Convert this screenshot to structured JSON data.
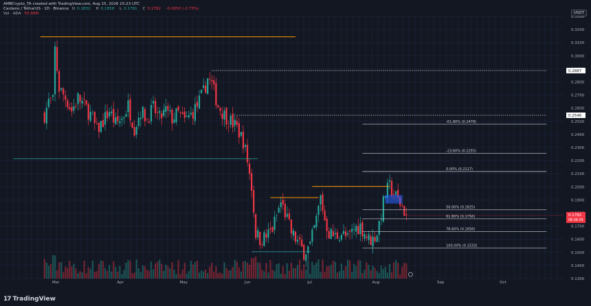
{
  "header": {
    "created": "AMBCrypto_TA created with TradingView.com, Aug 15, 2026 15:23 UTC",
    "symbol": "Cardano / TetherUS · 1D · Binance",
    "ohlc": [
      {
        "label": "O",
        "value": "0.1832"
      },
      {
        "label": "H",
        "value": "0.1858"
      },
      {
        "label": "L",
        "value": "0.1781"
      },
      {
        "label": "C",
        "value": "0.1782"
      },
      {
        "label": "",
        "value": "-0.0050 (-2.73%)"
      }
    ],
    "vol_line": "Vol · ADA",
    "vol_value": "55.86M"
  },
  "currency_button": "USDT",
  "brand": "TradingView",
  "brand_mark": "17",
  "colors": {
    "background": "#131722",
    "grid": "#2a3a6a",
    "up": "#26a69a",
    "down": "#f23645",
    "orange": "#ff9800",
    "white": "#d1d4dc",
    "fib": "#b2b5be"
  },
  "chart_data": {
    "type": "candlestick",
    "interval": "1D",
    "y_axis": {
      "min": 0.13,
      "max": 0.33,
      "ticks": [
        "0.3300",
        "0.3200",
        "0.3100",
        "0.3000",
        "0.2900",
        "0.2800",
        "0.2700",
        "0.2600",
        "0.2500",
        "0.2400",
        "0.2300",
        "0.2200",
        "0.2100",
        "0.2000",
        "0.1900",
        "0.1800",
        "0.1700",
        "0.1600",
        "0.1500",
        "0.1400",
        "0.1300"
      ],
      "tick_values": [
        0.33,
        0.32,
        0.31,
        0.3,
        0.29,
        0.28,
        0.27,
        0.26,
        0.25,
        0.24,
        0.23,
        0.22,
        0.21,
        0.2,
        0.19,
        0.18,
        0.17,
        0.16,
        0.15,
        0.14,
        0.13
      ]
    },
    "x_axis": {
      "labels": [
        {
          "label": "Mar",
          "day": 0
        },
        {
          "label": "Apr",
          "day": 31
        },
        {
          "label": "May",
          "day": 61
        },
        {
          "label": "Jun",
          "day": 92
        },
        {
          "label": "Jul",
          "day": 122
        },
        {
          "label": "Aug",
          "day": 153
        },
        {
          "label": "Sep",
          "day": 184
        },
        {
          "label": "Oct",
          "day": 214
        }
      ]
    },
    "price_tags": [
      {
        "label": "0.2887",
        "value": 0.2887,
        "kind": "line"
      },
      {
        "label": "0.2546",
        "value": 0.2546,
        "kind": "line"
      },
      {
        "label": "0.1782",
        "value": 0.1782,
        "kind": "current",
        "sub": "08:36:39"
      }
    ],
    "candle_anchors": [
      [
        -5,
        0.255
      ],
      [
        -3,
        0.265
      ],
      [
        -1,
        0.265
      ],
      [
        0,
        0.305
      ],
      [
        2,
        0.275
      ],
      [
        5,
        0.268
      ],
      [
        8,
        0.258
      ],
      [
        11,
        0.268
      ],
      [
        14,
        0.262
      ],
      [
        17,
        0.255
      ],
      [
        20,
        0.243
      ],
      [
        23,
        0.25
      ],
      [
        26,
        0.258
      ],
      [
        29,
        0.248
      ],
      [
        32,
        0.252
      ],
      [
        35,
        0.262
      ],
      [
        38,
        0.245
      ],
      [
        41,
        0.258
      ],
      [
        44,
        0.252
      ],
      [
        47,
        0.26
      ],
      [
        50,
        0.252
      ],
      [
        53,
        0.258
      ],
      [
        56,
        0.252
      ],
      [
        59,
        0.256
      ],
      [
        62,
        0.25
      ],
      [
        65,
        0.255
      ],
      [
        68,
        0.262
      ],
      [
        71,
        0.272
      ],
      [
        73,
        0.283
      ],
      [
        75,
        0.278
      ],
      [
        78,
        0.262
      ],
      [
        81,
        0.255
      ],
      [
        84,
        0.25
      ],
      [
        87,
        0.245
      ],
      [
        90,
        0.235
      ],
      [
        92,
        0.22
      ],
      [
        94,
        0.2
      ],
      [
        96,
        0.165
      ],
      [
        98,
        0.16
      ],
      [
        101,
        0.162
      ],
      [
        104,
        0.168
      ],
      [
        106,
        0.178
      ],
      [
        108,
        0.188
      ],
      [
        110,
        0.18
      ],
      [
        113,
        0.165
      ],
      [
        116,
        0.158
      ],
      [
        119,
        0.15
      ],
      [
        122,
        0.155
      ],
      [
        125,
        0.175
      ],
      [
        127,
        0.192
      ],
      [
        129,
        0.175
      ],
      [
        131,
        0.165
      ],
      [
        134,
        0.162
      ],
      [
        137,
        0.165
      ],
      [
        140,
        0.16
      ],
      [
        143,
        0.168
      ],
      [
        146,
        0.17
      ],
      [
        148,
        0.165
      ],
      [
        150,
        0.16
      ],
      [
        152,
        0.16
      ],
      [
        154,
        0.165
      ],
      [
        156,
        0.18
      ],
      [
        158,
        0.195
      ],
      [
        160,
        0.2
      ],
      [
        162,
        0.195
      ],
      [
        164,
        0.19
      ],
      [
        166,
        0.185
      ],
      [
        168,
        0.1782
      ]
    ],
    "volume_max_label": "",
    "annotations": {
      "orange_lines": [
        {
          "from_day": -7,
          "to_day": 115,
          "value": 0.3145
        },
        {
          "from_day": 103,
          "to_day": 126,
          "value": 0.1918
        },
        {
          "from_day": 123,
          "to_day": 160,
          "value": 0.2003
        }
      ],
      "teal_lines": [
        {
          "from_day": -20,
          "to_day": 97,
          "value": 0.2215
        },
        {
          "from_day": 94,
          "to_day": 122,
          "value": 0.1505
        }
      ],
      "dotted_lines": [
        {
          "from_day": 75,
          "to_day": 235,
          "value": 0.2887
        },
        {
          "from_day": 87,
          "to_day": 235,
          "value": 0.2546
        }
      ],
      "fib_levels": [
        {
          "label": "-61.80% (0.2478)",
          "value": 0.2478
        },
        {
          "label": "-23.60% (0.2255)",
          "value": 0.2255
        },
        {
          "label": "0.00% (0.2117)",
          "value": 0.2117
        },
        {
          "label": "50.00% (0.1825)",
          "value": 0.1825
        },
        {
          "label": "61.80% (0.1756)",
          "value": 0.1756
        },
        {
          "label": "78.60% (0.1658)",
          "value": 0.1658
        },
        {
          "label": "100.00% (0.1533)",
          "value": 0.1533
        }
      ],
      "fib_from_day": 147,
      "fib_to_day": 235,
      "blue_box": {
        "from_day": 158,
        "to_day": 166,
        "top": 0.1935,
        "bottom": 0.1875
      }
    }
  }
}
